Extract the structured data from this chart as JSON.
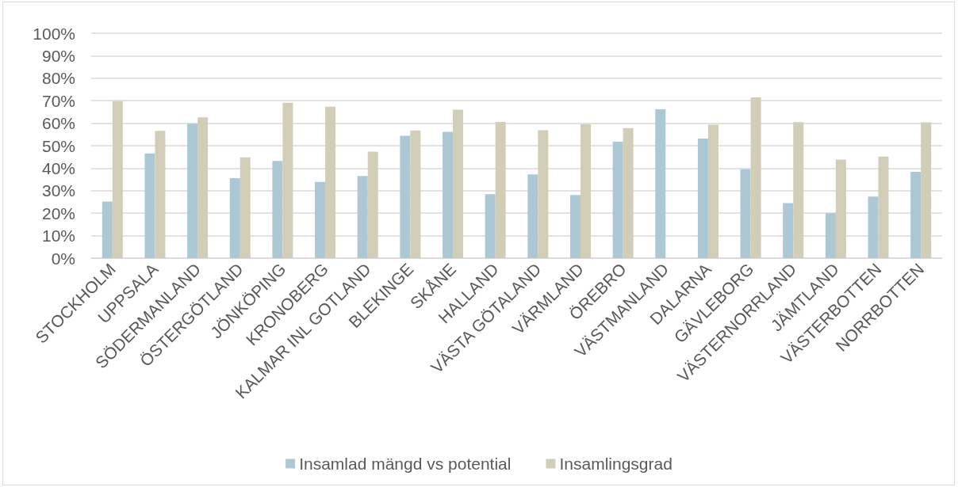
{
  "chart_data": {
    "type": "bar",
    "categories": [
      "STOCKHOLM",
      "UPPSALA",
      "SÖDERMANLAND",
      "ÖSTERGÖTLAND",
      "JÖNKÖPING",
      "KRONOBERG",
      "KALMAR INL GOTLAND",
      "BLEKINGE",
      "SKÅNE",
      "HALLAND",
      "VÄSTA GÖTALAND",
      "VÄRMLAND",
      "ÖREBRO",
      "VÄSTMANLAND",
      "DALARNA",
      "GÄVLEBORG",
      "VÄSTERNORRLAND",
      "JÄMTLAND",
      "VÄSTERBOTTEN",
      "NORRBOTTEN"
    ],
    "series": [
      {
        "name": "Insamlad mängd vs potential",
        "color": "#abc8d4",
        "values": [
          25.2,
          46.6,
          59.8,
          35.6,
          43.2,
          33.9,
          36.5,
          54.4,
          56.2,
          28.4,
          37.2,
          28.1,
          51.8,
          66.2,
          53.2,
          39.5,
          24.5,
          20.0,
          27.4,
          38.4
        ]
      },
      {
        "name": "Insamlingsgrad",
        "color": "#d2cdb6",
        "values": [
          69.8,
          56.6,
          62.6,
          44.8,
          69.1,
          67.3,
          47.4,
          56.8,
          66.0,
          60.6,
          56.9,
          59.5,
          57.8,
          null,
          59.3,
          71.5,
          60.5,
          43.8,
          45.2,
          60.4
        ]
      }
    ],
    "ylim": [
      0,
      100
    ],
    "yticks": [
      {
        "value": 0,
        "label": "0%"
      },
      {
        "value": 10,
        "label": "10%"
      },
      {
        "value": 20,
        "label": "20%"
      },
      {
        "value": 30,
        "label": "30%"
      },
      {
        "value": 40,
        "label": "40%"
      },
      {
        "value": 50,
        "label": "50%"
      },
      {
        "value": 60,
        "label": "60%"
      },
      {
        "value": 70,
        "label": "70%"
      },
      {
        "value": 80,
        "label": "80%"
      },
      {
        "value": 90,
        "label": "90%"
      },
      {
        "value": 100,
        "label": "100%"
      }
    ],
    "grid": "y",
    "legend": "bottom"
  }
}
